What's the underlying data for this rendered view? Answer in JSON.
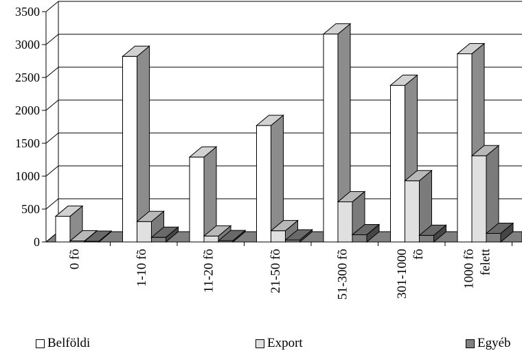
{
  "chart_data": {
    "type": "bar",
    "title": "",
    "xlabel": "",
    "ylabel": "",
    "ylim": [
      0,
      3500
    ],
    "yticks": [
      0,
      500,
      1000,
      1500,
      2000,
      2500,
      3000,
      3500
    ],
    "grid": true,
    "legend_position": "bottom",
    "categories": [
      [
        "0 fõ"
      ],
      [
        "1-10 fõ"
      ],
      [
        "11-20 fõ"
      ],
      [
        "21-50 fõ"
      ],
      [
        "51-300 fõ"
      ],
      [
        "301-1000",
        "fõ"
      ],
      [
        "1000 fõ",
        "felett"
      ]
    ],
    "series": [
      {
        "name": "Belföldi",
        "color": "#ffffff",
        "values": [
          390,
          2820,
          1290,
          1770,
          3160,
          2380,
          2860
        ]
      },
      {
        "name": "Export",
        "color": "#e0e0e0",
        "values": [
          15,
          310,
          90,
          170,
          610,
          930,
          1310
        ]
      },
      {
        "name": "Egyéb",
        "color": "#808080",
        "values": [
          10,
          70,
          20,
          30,
          110,
          100,
          130
        ]
      }
    ],
    "floor_color": "#808080"
  }
}
